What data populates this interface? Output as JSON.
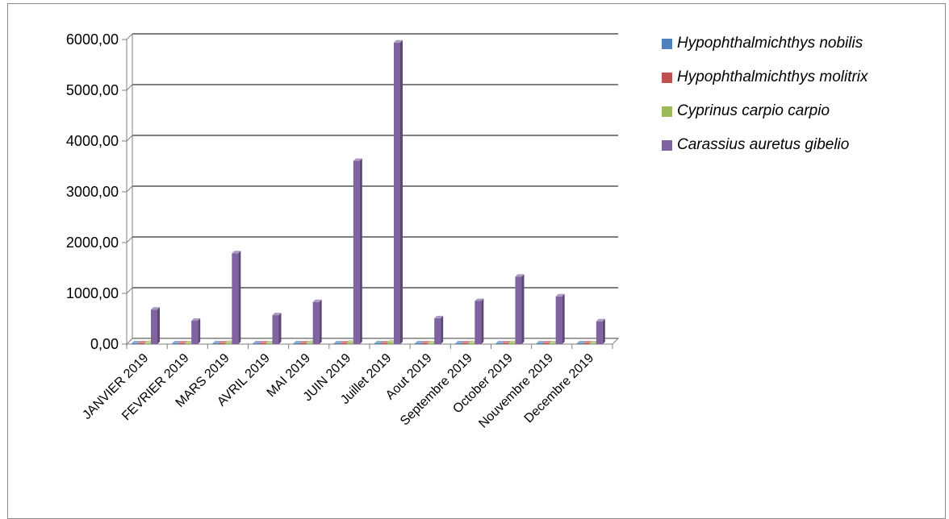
{
  "chart_data": {
    "type": "bar",
    "title": "",
    "xlabel": "",
    "ylabel": "",
    "ylim": [
      0,
      6000
    ],
    "yticks": [
      "0,00",
      "1000,00",
      "2000,00",
      "3000,00",
      "4000,00",
      "5000,00",
      "6000,00"
    ],
    "grid": true,
    "legend_position": "right",
    "categories": [
      "JANVIER 2019",
      "FEVRIER 2019",
      "MARS 2019",
      "AVRIL 2019",
      "MAI 2019",
      "JUIN 2019",
      "Juillet 2019",
      "Aout 2019",
      "Septembre 2019",
      "October 2019",
      "Nouvembre 2019",
      "Decembre 2019"
    ],
    "series": [
      {
        "name": "Hypophthalmichthys nobilis",
        "color": "#4f81bd",
        "values": [
          5,
          3,
          4,
          3,
          4,
          5,
          5,
          3,
          4,
          4,
          3,
          3
        ]
      },
      {
        "name": "Hypophthalmichthys molitrix",
        "color": "#c0504d",
        "values": [
          5,
          4,
          5,
          4,
          5,
          6,
          6,
          4,
          5,
          5,
          4,
          4
        ]
      },
      {
        "name": "Cyprinus carpio carpio",
        "color": "#9bbb59",
        "values": [
          20,
          15,
          25,
          18,
          22,
          30,
          35,
          16,
          20,
          24,
          18,
          14
        ]
      },
      {
        "name": "Carassius auretus gibelio",
        "color": "#8064a2",
        "values": [
          680,
          460,
          1790,
          570,
          830,
          3610,
          5940,
          510,
          850,
          1330,
          940,
          450
        ]
      }
    ]
  }
}
